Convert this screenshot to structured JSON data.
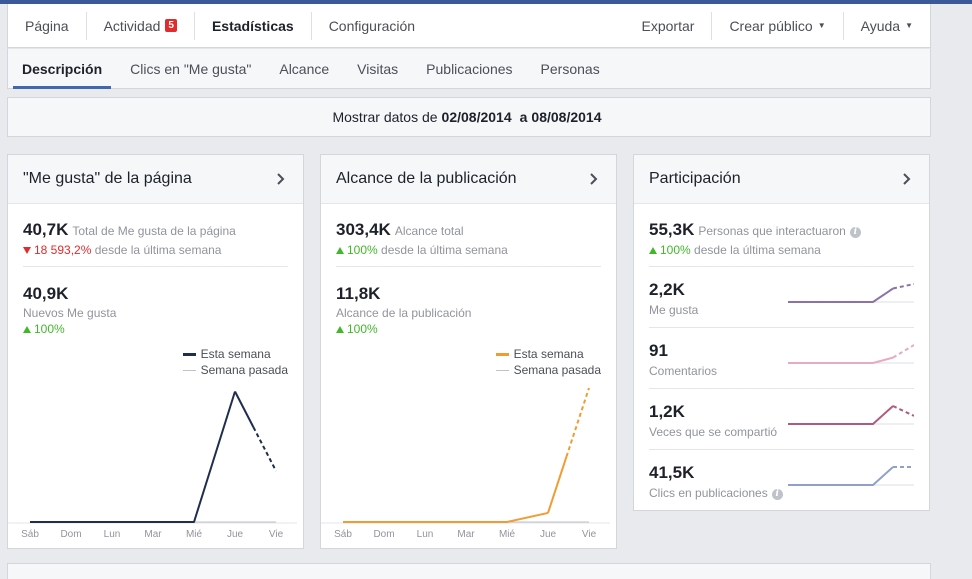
{
  "topnav": {
    "tabs": [
      "Página",
      "Actividad",
      "Estadísticas",
      "Configuración"
    ],
    "activity_badge": "5",
    "right": [
      "Exportar",
      "Crear público",
      "Ayuda"
    ]
  },
  "subnav": {
    "tabs": [
      "Descripción",
      "Clics en \"Me gusta\"",
      "Alcance",
      "Visitas",
      "Publicaciones",
      "Personas"
    ]
  },
  "daterange": {
    "prefix": "Mostrar datos de",
    "from": "02/08/2014",
    "joiner": "a",
    "to": "08/08/2014"
  },
  "colors": {
    "navy": "#1f2e4e",
    "orange": "#f09c33",
    "gray_line": "#bec3c9",
    "accent": "#4267b2",
    "up": "#42b72a",
    "down": "#e02c2c"
  },
  "likes_card": {
    "title": "\"Me gusta\" de la página",
    "total_value": "40,7K",
    "total_label": "Total de Me gusta de la página",
    "total_delta": "18 593,2%",
    "total_delta_suffix": "desde la última semana",
    "new_value": "40,9K",
    "new_label": "Nuevos Me gusta",
    "new_delta": "100%"
  },
  "reach_card": {
    "title": "Alcance de la publicación",
    "total_value": "303,4K",
    "total_label": "Alcance total",
    "total_delta": "100%",
    "total_delta_suffix": "desde la última semana",
    "post_value": "11,8K",
    "post_label": "Alcance de la publicación",
    "post_delta": "100%"
  },
  "legend": {
    "this_week": "Esta semana",
    "last_week": "Semana pasada"
  },
  "engagement_card": {
    "title": "Participación",
    "people_value": "55,3K",
    "people_label": "Personas que interactuaron",
    "people_delta": "100%",
    "people_delta_suffix": "desde la última semana",
    "rows": [
      {
        "value": "2,2K",
        "label": "Me gusta",
        "color": "#8c72a8"
      },
      {
        "value": "91",
        "label": "Comentarios",
        "color": "#e8a9c4"
      },
      {
        "value": "1,2K",
        "label": "Veces que se compartió",
        "color": "#b05a7e"
      },
      {
        "value": "41,5K",
        "label": "Clics en publicaciones",
        "color": "#8fa1c9"
      }
    ]
  },
  "chart_data": [
    {
      "type": "line",
      "categories": [
        "Sáb",
        "Dom",
        "Lun",
        "Mar",
        "Mié",
        "Jue",
        "Vie"
      ],
      "series": [
        {
          "name": "Esta semana",
          "values": [
            0,
            0,
            0,
            0,
            0,
            40900,
            16000
          ],
          "color": "#1f2e4e"
        },
        {
          "name": "Semana pasada",
          "values": [
            0,
            0,
            0,
            0,
            0,
            0,
            0
          ],
          "color": "#bec3c9"
        }
      ],
      "ylim": [
        0,
        42000
      ]
    },
    {
      "type": "line",
      "categories": [
        "Sáb",
        "Dom",
        "Lun",
        "Mar",
        "Mié",
        "Jue",
        "Vie"
      ],
      "series": [
        {
          "name": "Esta semana",
          "values": [
            0,
            0,
            0,
            0,
            0,
            800,
            11800
          ],
          "color": "#f09c33"
        },
        {
          "name": "Semana pasada",
          "values": [
            0,
            0,
            0,
            0,
            0,
            0,
            0
          ],
          "color": "#bec3c9"
        }
      ],
      "ylim": [
        0,
        11800
      ]
    }
  ],
  "sparklines": [
    [
      0,
      0,
      0,
      0,
      0,
      0.75,
      1
    ],
    [
      0,
      0,
      0,
      0,
      0,
      0.3,
      1
    ],
    [
      0,
      0,
      0,
      0,
      0,
      1,
      0.45
    ],
    [
      0,
      0,
      0,
      0,
      0,
      1,
      1
    ]
  ]
}
